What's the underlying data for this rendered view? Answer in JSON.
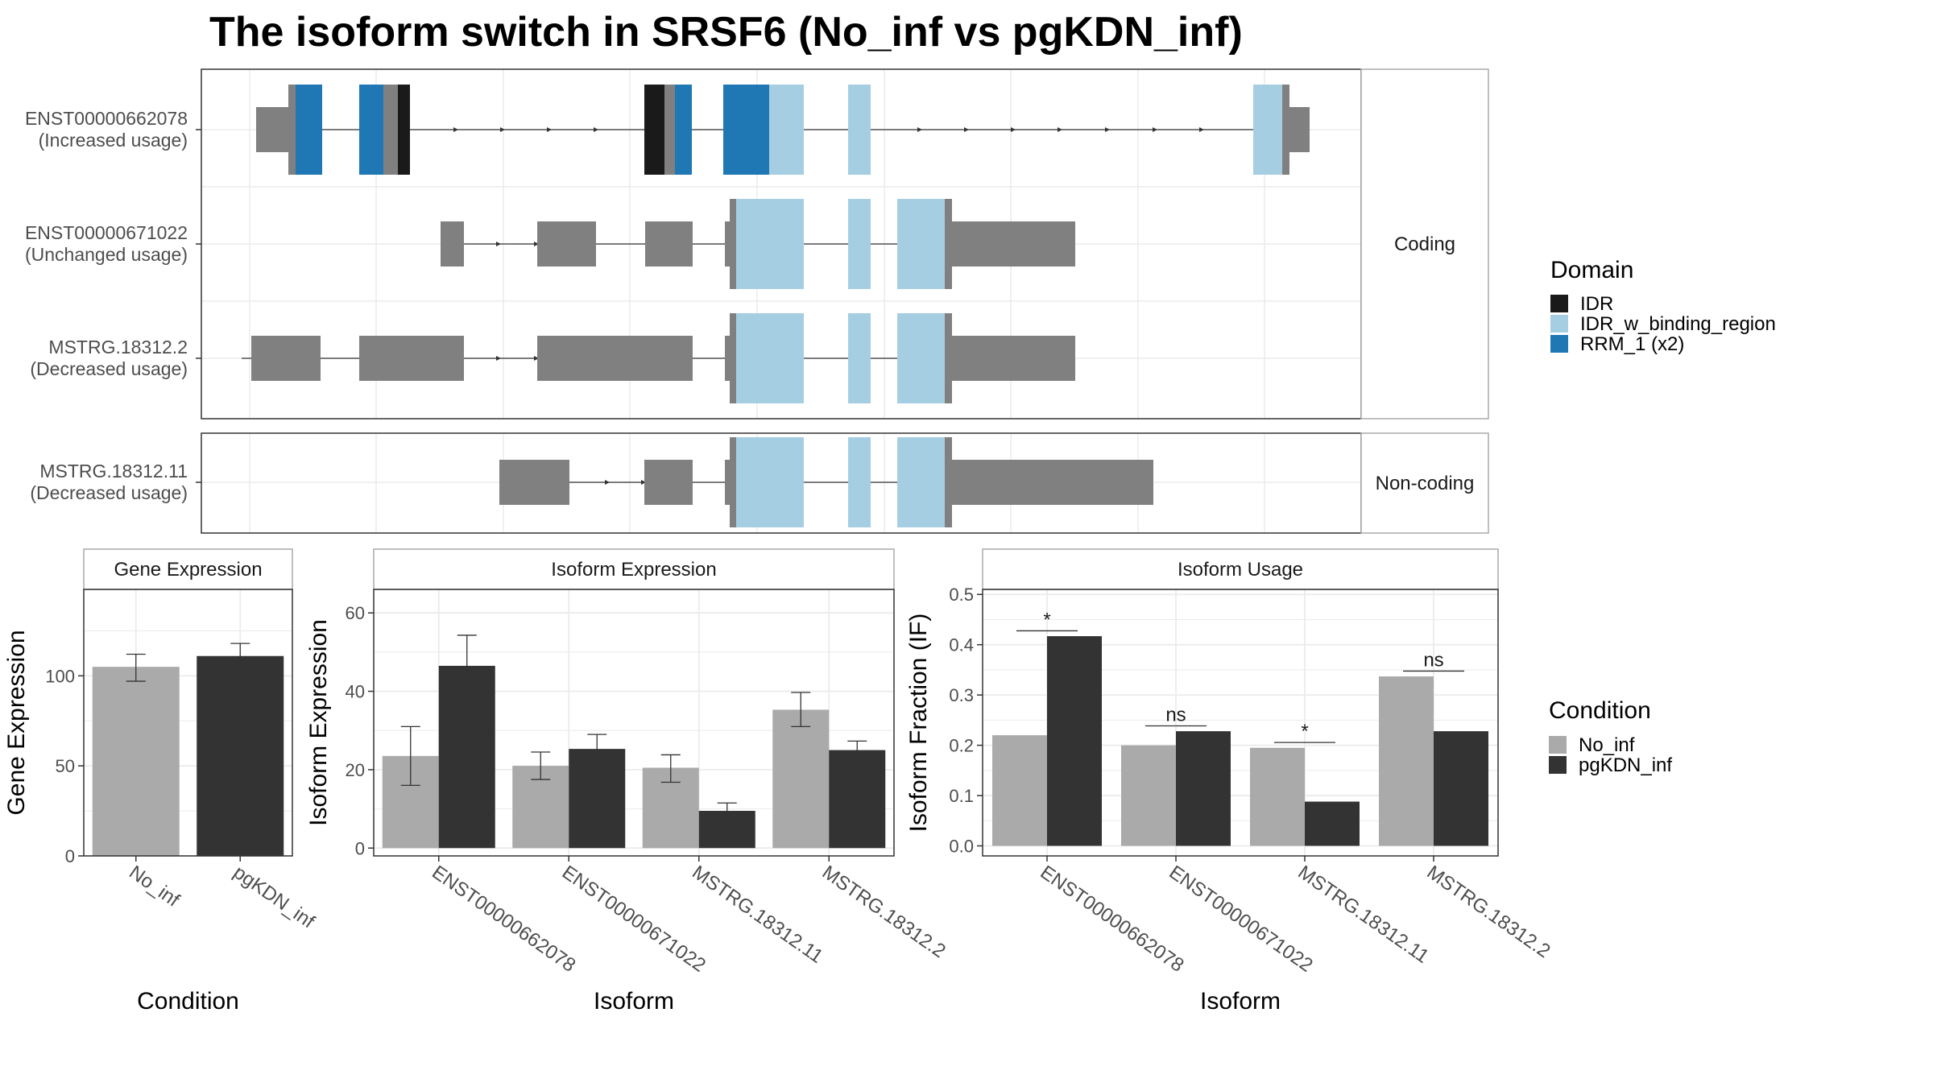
{
  "title": "The isoform switch in SRSF6 (No_inf vs pgKDN_inf)",
  "colors": {
    "IDR": "#1a1a1a",
    "IDR_w_binding_region": "#a6cee3",
    "RRM_1 (x2)": "#1f78b4",
    "exon": "#808080",
    "No_inf": "#aaaaaa",
    "pgKDN_inf": "#333333",
    "strip": "#ffffff",
    "grid": "#ebebeb"
  },
  "legends": {
    "domain": {
      "title": "Domain",
      "items": [
        "IDR",
        "IDR_w_binding_region",
        "RRM_1 (x2)"
      ]
    },
    "condition": {
      "title": "Condition",
      "items": [
        "No_inf",
        "pgKDN_inf"
      ]
    }
  },
  "structure": {
    "facets": [
      "Coding",
      "Non-coding"
    ],
    "isoforms": [
      {
        "id": "ENST00000662078",
        "usage": "(Increased usage)",
        "facet": "Coding"
      },
      {
        "id": "ENST00000671022",
        "usage": "(Unchanged usage)",
        "facet": "Coding"
      },
      {
        "id": "MSTRG.18312.2",
        "usage": "(Decreased usage)",
        "facet": "Coding"
      },
      {
        "id": "MSTRG.18312.11",
        "usage": "(Decreased usage)",
        "facet": "Non-coding"
      }
    ]
  },
  "chart_data": [
    {
      "type": "bar",
      "title": "Gene Expression",
      "xlabel": "Condition",
      "ylabel": "Gene Expression",
      "categories": [
        "No_inf",
        "pgKDN_inf"
      ],
      "values": [
        105,
        111
      ],
      "errors": [
        [
          97,
          112
        ],
        [
          104,
          118
        ]
      ],
      "yticks": [
        0,
        50,
        100
      ],
      "ylim": [
        0,
        148
      ]
    },
    {
      "type": "bar",
      "title": "Isoform Expression",
      "xlabel": "Isoform",
      "ylabel": "Isoform Expression",
      "categories": [
        "ENST00000662078",
        "ENST00000671022",
        "MSTRG.18312.11",
        "MSTRG.18312.2"
      ],
      "series": [
        {
          "name": "No_inf",
          "values": [
            23.5,
            21,
            20.5,
            35.3
          ],
          "errors": [
            [
              16,
              31
            ],
            [
              17.5,
              24.5
            ],
            [
              16.8,
              23.8
            ],
            [
              31,
              39.7
            ]
          ]
        },
        {
          "name": "pgKDN_inf",
          "values": [
            46.5,
            25.3,
            9.5,
            25
          ],
          "errors": [
            [
              38.8,
              54.3
            ],
            [
              21.5,
              29
            ],
            [
              7.5,
              11.5
            ],
            [
              22.8,
              27.3
            ]
          ]
        }
      ],
      "yticks": [
        0,
        20,
        40,
        60
      ],
      "ylim": [
        -2,
        66
      ]
    },
    {
      "type": "bar",
      "title": "Isoform Usage",
      "xlabel": "Isoform",
      "ylabel": "Isoform Fraction (IF)",
      "categories": [
        "ENST00000662078",
        "ENST00000671022",
        "MSTRG.18312.11",
        "MSTRG.18312.2"
      ],
      "series": [
        {
          "name": "No_inf",
          "values": [
            0.22,
            0.2,
            0.195,
            0.337
          ]
        },
        {
          "name": "pgKDN_inf",
          "values": [
            0.417,
            0.228,
            0.088,
            0.228
          ]
        }
      ],
      "significance": [
        "*",
        "ns",
        "*",
        "ns"
      ],
      "yticks": [
        0.0,
        0.1,
        0.2,
        0.3,
        0.4,
        0.5
      ],
      "ylim": [
        -0.02,
        0.51
      ]
    }
  ]
}
